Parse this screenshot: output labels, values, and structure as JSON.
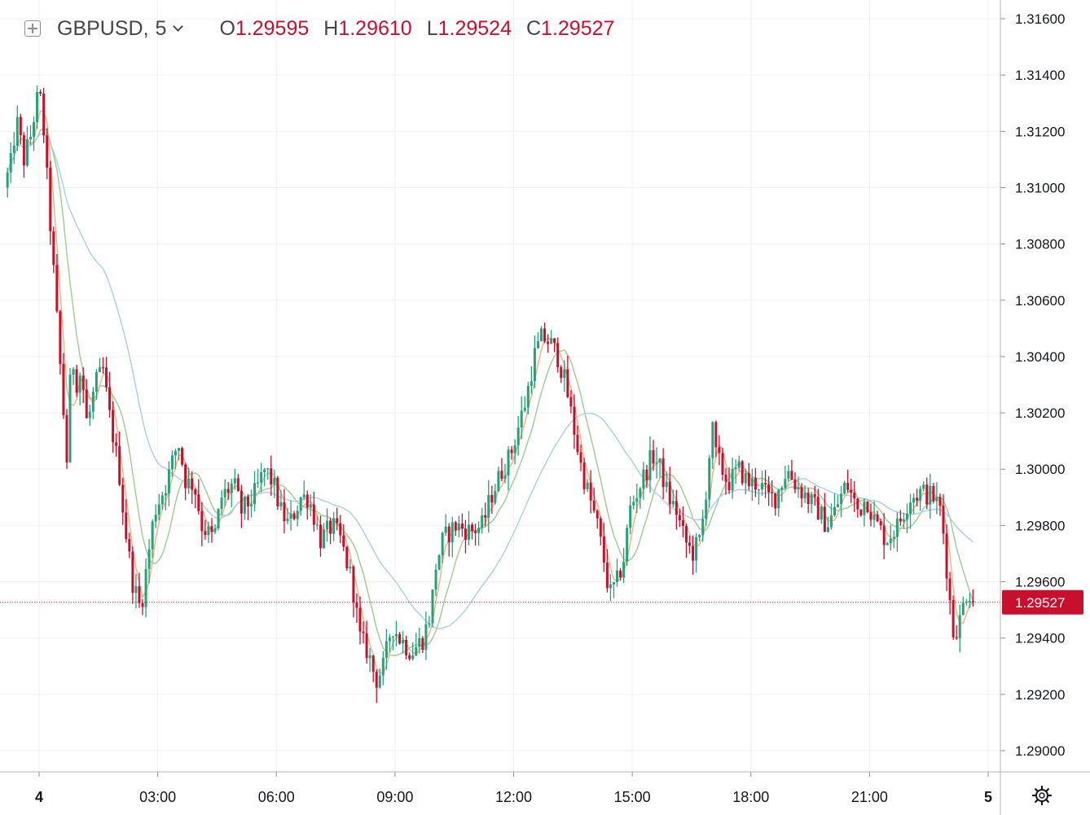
{
  "legend": {
    "symbol": "GBPUSD,",
    "resolution": "5",
    "open_key": "O",
    "open_value": "1.29595",
    "high_key": "H",
    "high_value": "1.29610",
    "low_key": "L",
    "low_value": "1.29524",
    "close_key": "C",
    "close_value": "1.29527"
  },
  "last_price_label": "1.29527",
  "icons": {
    "legend_toggle": "plus-square-icon",
    "resolution_menu": "chevron-down-icon",
    "settings": "gear-icon"
  },
  "colors": {
    "up": "#26a17a",
    "down": "#c8102e",
    "ma_fast": "#f0b27a",
    "ma_mid": "#9ccc8e",
    "ma_slow": "#a9cfe0",
    "grid": "#eef1f4"
  },
  "chart_data": {
    "type": "candlestick",
    "symbol": "GBPUSD",
    "timeframe": "5",
    "y_ticks": [
      "1.29000",
      "1.29200",
      "1.29400",
      "1.29600",
      "1.29800",
      "1.30000",
      "1.30200",
      "1.30400",
      "1.30600",
      "1.30800",
      "1.31000",
      "1.31200",
      "1.31400",
      "1.31600"
    ],
    "ylim": [
      1.2883,
      1.3167
    ],
    "x_ticks": [
      {
        "label": "4",
        "hour": 0,
        "bold": true
      },
      {
        "label": "03:00",
        "hour": 3
      },
      {
        "label": "06:00",
        "hour": 6
      },
      {
        "label": "09:00",
        "hour": 9
      },
      {
        "label": "12:00",
        "hour": 12
      },
      {
        "label": "15:00",
        "hour": 15
      },
      {
        "label": "18:00",
        "hour": 18
      },
      {
        "label": "21:00",
        "hour": 21
      },
      {
        "label": "5",
        "hour": 24,
        "bold": true
      }
    ],
    "xlim_hours": [
      -0.8,
      24
    ],
    "bar_minutes": 5,
    "last_price": 1.29527,
    "price_path": [
      [
        -0.8,
        1.31
      ],
      [
        -0.6,
        1.311
      ],
      [
        -0.5,
        1.3125
      ],
      [
        -0.3,
        1.311
      ],
      [
        -0.2,
        1.3115
      ],
      [
        -0.1,
        1.312
      ],
      [
        0.0,
        1.313
      ],
      [
        0.1,
        1.3133
      ],
      [
        0.2,
        1.312
      ],
      [
        0.35,
        1.309
      ],
      [
        0.5,
        1.306
      ],
      [
        0.65,
        1.303
      ],
      [
        0.8,
        1.3
      ],
      [
        0.9,
        1.3045
      ],
      [
        1.0,
        1.303
      ],
      [
        1.15,
        1.3035
      ],
      [
        1.3,
        1.3015
      ],
      [
        1.5,
        1.303
      ],
      [
        1.7,
        1.3035
      ],
      [
        1.85,
        1.302
      ],
      [
        2.1,
        1.3
      ],
      [
        2.25,
        1.298
      ],
      [
        2.45,
        1.296
      ],
      [
        2.65,
        1.295
      ],
      [
        2.8,
        1.2965
      ],
      [
        3.0,
        1.2985
      ],
      [
        3.3,
        1.2995
      ],
      [
        3.6,
        1.301
      ],
      [
        3.8,
        1.2995
      ],
      [
        4.0,
        1.2995
      ],
      [
        4.2,
        1.298
      ],
      [
        4.5,
        1.2975
      ],
      [
        4.7,
        1.299
      ],
      [
        5.0,
        1.2995
      ],
      [
        5.2,
        1.2985
      ],
      [
        5.5,
        1.299
      ],
      [
        5.8,
        1.3
      ],
      [
        6.0,
        1.2995
      ],
      [
        6.2,
        1.2985
      ],
      [
        6.4,
        1.298
      ],
      [
        6.7,
        1.299
      ],
      [
        6.9,
        1.299
      ],
      [
        7.2,
        1.2975
      ],
      [
        7.5,
        1.298
      ],
      [
        7.7,
        1.2975
      ],
      [
        8.0,
        1.296
      ],
      [
        8.2,
        1.294
      ],
      [
        8.4,
        1.2935
      ],
      [
        8.6,
        1.2925
      ],
      [
        8.8,
        1.293
      ],
      [
        9.0,
        1.2945
      ],
      [
        9.2,
        1.294
      ],
      [
        9.5,
        1.2935
      ],
      [
        9.8,
        1.294
      ],
      [
        10.0,
        1.295
      ],
      [
        10.1,
        1.2965
      ],
      [
        10.3,
        1.2975
      ],
      [
        10.6,
        1.298
      ],
      [
        11.0,
        1.2978
      ],
      [
        11.3,
        1.298
      ],
      [
        11.5,
        1.299
      ],
      [
        11.8,
        1.3
      ],
      [
        12.0,
        1.3005
      ],
      [
        12.2,
        1.3015
      ],
      [
        12.4,
        1.3025
      ],
      [
        12.6,
        1.304
      ],
      [
        12.8,
        1.3047
      ],
      [
        13.0,
        1.3045
      ],
      [
        13.2,
        1.304
      ],
      [
        13.4,
        1.303
      ],
      [
        13.6,
        1.3015
      ],
      [
        13.8,
        1.3
      ],
      [
        14.0,
        1.299
      ],
      [
        14.2,
        1.298
      ],
      [
        14.4,
        1.2965
      ],
      [
        14.5,
        1.2955
      ],
      [
        14.7,
        1.296
      ],
      [
        14.9,
        1.297
      ],
      [
        15.0,
        1.2985
      ],
      [
        15.3,
        1.2995
      ],
      [
        15.6,
        1.3005
      ],
      [
        15.8,
        1.3
      ],
      [
        16.0,
        1.299
      ],
      [
        16.2,
        1.2985
      ],
      [
        16.4,
        1.2975
      ],
      [
        16.6,
        1.297
      ],
      [
        16.8,
        1.2975
      ],
      [
        16.9,
        1.2985
      ],
      [
        17.0,
        1.3
      ],
      [
        17.1,
        1.3015
      ],
      [
        17.2,
        1.3005
      ],
      [
        17.5,
        1.2995
      ],
      [
        17.8,
        1.3
      ],
      [
        18.0,
        1.2995
      ],
      [
        18.3,
        1.2995
      ],
      [
        18.5,
        1.299
      ],
      [
        18.7,
        1.299
      ],
      [
        19.0,
        1.3
      ],
      [
        19.2,
        1.2995
      ],
      [
        19.5,
        1.299
      ],
      [
        19.8,
        1.2985
      ],
      [
        20.0,
        1.298
      ],
      [
        20.2,
        1.2985
      ],
      [
        20.5,
        1.2995
      ],
      [
        20.8,
        1.2985
      ],
      [
        21.0,
        1.299
      ],
      [
        21.2,
        1.2982
      ],
      [
        21.5,
        1.2975
      ],
      [
        21.8,
        1.298
      ],
      [
        22.1,
        1.299
      ],
      [
        22.4,
        1.2992
      ],
      [
        22.7,
        1.299
      ],
      [
        22.9,
        1.2985
      ],
      [
        23.0,
        1.297
      ],
      [
        23.1,
        1.2955
      ],
      [
        23.2,
        1.2942
      ],
      [
        23.35,
        1.2945
      ],
      [
        23.5,
        1.2955
      ],
      [
        23.6,
        1.2958
      ],
      [
        23.65,
        1.29527
      ]
    ],
    "moving_averages": [
      {
        "role": "fast",
        "period_bars": 4
      },
      {
        "role": "mid",
        "period_bars": 10
      },
      {
        "role": "slow",
        "period_bars": 30
      }
    ]
  }
}
